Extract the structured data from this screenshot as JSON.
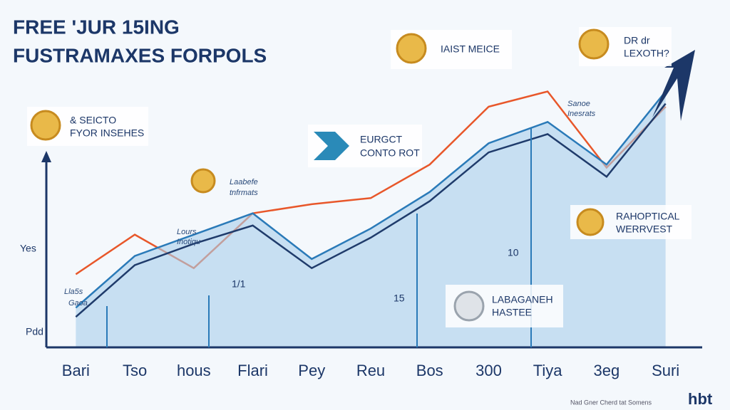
{
  "chart_data": {
    "type": "line",
    "title": "FREE 'JUR 15ING",
    "subtitle": "FUSTRAMAXES FORPOLS",
    "y_label": "Yes",
    "categories": [
      "Bari",
      "Tso",
      "hous",
      "Flari",
      "Pey",
      "Reu",
      "Bos",
      "300",
      "Tiya",
      "3eg",
      "Suri"
    ],
    "series": [
      {
        "name": "orange",
        "color": "#e8572a",
        "values": [
          24,
          37,
          26,
          44,
          47,
          49,
          60,
          79,
          84,
          59,
          79
        ]
      },
      {
        "name": "blue",
        "color": "#2a7ab8",
        "values": [
          13,
          30,
          37,
          44,
          29,
          39,
          51,
          67,
          74,
          60,
          84
        ]
      },
      {
        "name": "navy",
        "color": "#1f3b6b",
        "values": [
          10,
          27,
          34,
          40,
          26,
          36,
          48,
          64,
          70,
          56,
          80
        ]
      }
    ],
    "ylim": [
      0,
      100
    ],
    "annotations": [
      "& SEICTO",
      "FYOR INSEHES",
      "Laabefe",
      "tnfrmats",
      "Lours",
      "Inotiqu",
      "EURGCT",
      "CONTO ROT",
      "IAIST MEICE",
      "DR dr",
      "LEXOTH?",
      "Sanoe",
      "Inesrats",
      "RAHOPTICAL",
      "WERRVEST",
      "LABAGANEH",
      "HASTEE",
      "10",
      "15",
      "1/1",
      "Pdd",
      "Lla5s",
      "Gaoa"
    ],
    "footer": "Nad Gner Cherd tat Somens",
    "brand": "hbt"
  }
}
